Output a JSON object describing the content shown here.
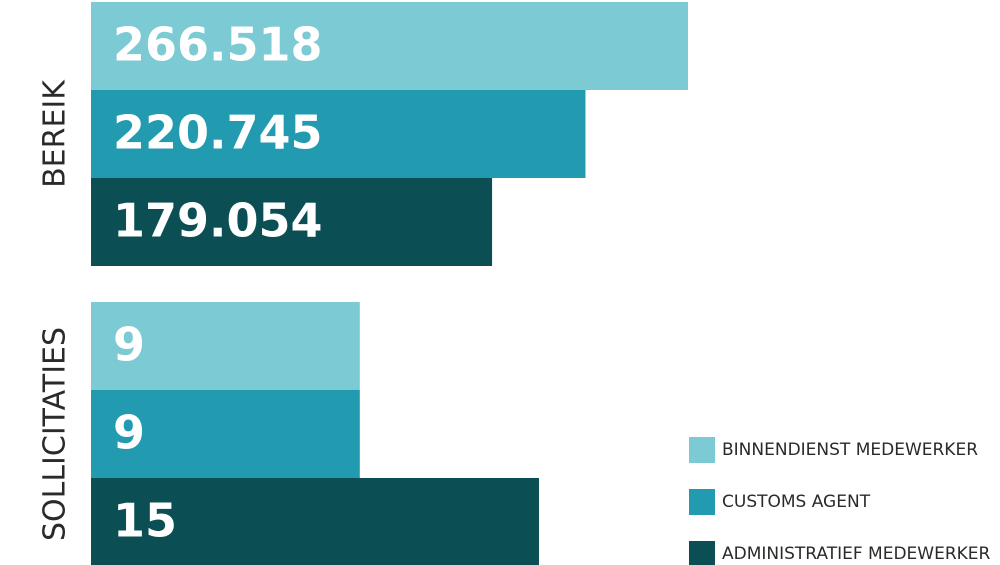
{
  "chart_data": [
    {
      "type": "bar",
      "orientation": "horizontal",
      "y_label": "BEREIK",
      "xlim": [
        0,
        400000
      ],
      "series": [
        {
          "name": "BINNENDIENST MEDEWERKER",
          "color": "#7ccad3",
          "values": [
            266518
          ],
          "value_labels": [
            "266.518"
          ]
        },
        {
          "name": "CUSTOMS AGENT",
          "color": "#229bb0",
          "values": [
            220745
          ],
          "value_labels": [
            "220.745"
          ]
        },
        {
          "name": "ADMINISTRATIEF MEDEWERKER",
          "color": "#0b4f55",
          "values": [
            179054
          ],
          "value_labels": [
            "179.054"
          ]
        }
      ]
    },
    {
      "type": "bar",
      "orientation": "horizontal",
      "y_label": "SOLLICITATIES",
      "xlim": [
        0,
        30
      ],
      "series": [
        {
          "color": "#7ccad3",
          "values": [
            9
          ]
        },
        {
          "color": "#229bb0",
          "values": [
            9
          ]
        },
        {
          "color": "#0b4f55",
          "values": [
            15
          ]
        }
      ]
    }
  ]
}
